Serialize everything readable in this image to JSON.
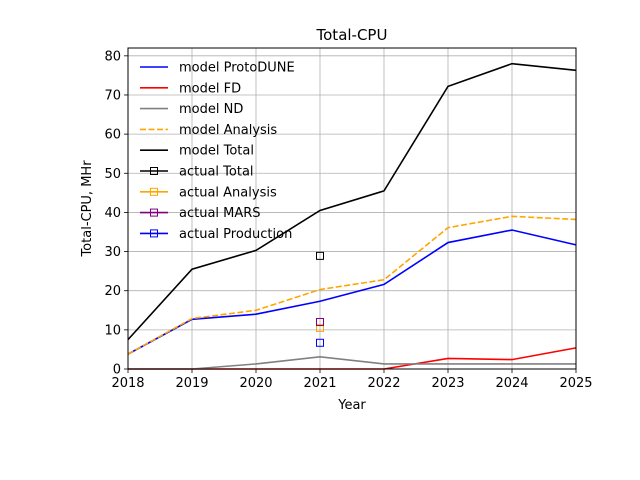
{
  "chart_data": {
    "type": "line",
    "title": "Total-CPU",
    "xlabel": "Year",
    "ylabel": "Total-CPU, MHr",
    "xlim": [
      2018,
      2025
    ],
    "ylim": [
      0,
      82
    ],
    "xticks": [
      2018,
      2019,
      2020,
      2021,
      2022,
      2023,
      2024,
      2025
    ],
    "yticks": [
      0,
      10,
      20,
      30,
      40,
      50,
      60,
      70,
      80
    ],
    "grid": true,
    "legend_position": "upper-left",
    "x": [
      2018,
      2019,
      2020,
      2021,
      2022,
      2023,
      2024,
      2025
    ],
    "series": [
      {
        "name": "model ProtoDUNE",
        "kind": "line",
        "color": "#0000ff",
        "dash": "solid",
        "values": [
          3.8,
          12.7,
          14.0,
          17.3,
          21.6,
          32.3,
          35.5,
          31.7
        ]
      },
      {
        "name": "model FD",
        "kind": "line",
        "color": "#ff0000",
        "dash": "solid",
        "values": [
          0.0,
          0.0,
          0.0,
          0.0,
          0.0,
          2.7,
          2.4,
          5.4
        ]
      },
      {
        "name": "model ND",
        "kind": "line",
        "color": "#808080",
        "dash": "solid",
        "values": [
          0.0,
          0.0,
          1.3,
          3.1,
          1.3,
          1.3,
          1.3,
          1.3
        ]
      },
      {
        "name": "model Analysis",
        "kind": "line",
        "color": "#ffa500",
        "dash": "dashed",
        "values": [
          3.8,
          12.9,
          15.0,
          20.3,
          22.8,
          36.1,
          39.0,
          38.2
        ]
      },
      {
        "name": "model Total",
        "kind": "line",
        "color": "#000000",
        "dash": "solid",
        "values": [
          7.5,
          25.5,
          30.3,
          40.5,
          45.5,
          72.2,
          78.0,
          76.3
        ]
      },
      {
        "name": "actual Total",
        "kind": "marker",
        "color": "#000000",
        "points": [
          {
            "x": 2021,
            "y": 28.9
          }
        ]
      },
      {
        "name": "actual Analysis",
        "kind": "marker",
        "color": "#ffa500",
        "points": [
          {
            "x": 2021,
            "y": 10.5
          }
        ]
      },
      {
        "name": "actual MARS",
        "kind": "marker",
        "color": "#800080",
        "points": [
          {
            "x": 2021,
            "y": 12.0
          }
        ]
      },
      {
        "name": "actual Production",
        "kind": "marker",
        "color": "#0000ff",
        "points": [
          {
            "x": 2021,
            "y": 6.7
          }
        ]
      }
    ]
  }
}
